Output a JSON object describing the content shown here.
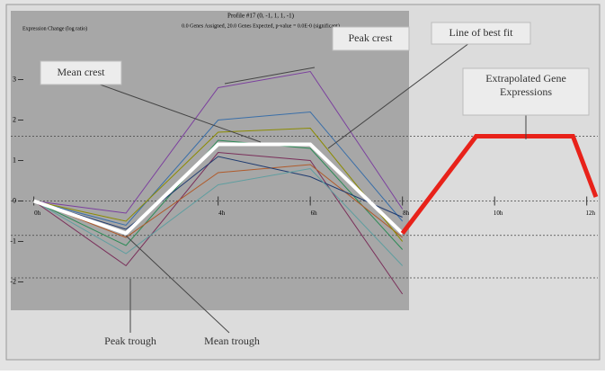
{
  "chart_data": {
    "type": "line",
    "title": "Profile #17 (0, -1, 1, 1, -1)",
    "subtitle": "0.0 Genes Assigned, 20.0 Genes Expected, p-value = 0.0E-0 (significant)",
    "y_label": "Expression Change (log ratio)",
    "xlim": [
      -0.25,
      6.12
    ],
    "ylim": [
      -2.7,
      4.7
    ],
    "xticks": [
      {
        "value": 0,
        "label": "0h"
      },
      {
        "value": 2,
        "label": "4h"
      },
      {
        "value": 3,
        "label": "6h"
      },
      {
        "value": 4,
        "label": "8h"
      },
      {
        "value": 5,
        "label": "10h"
      },
      {
        "value": 6,
        "label": "12h"
      }
    ],
    "yticks": [
      -2,
      -1,
      0,
      1,
      2,
      3
    ],
    "reference_lines": [
      1.6,
      0,
      -0.85,
      -1.9
    ],
    "series": [
      {
        "color": "#7b3f9e",
        "x": [
          0,
          1,
          2,
          3,
          4
        ],
        "values": [
          0,
          -0.3,
          2.8,
          3.2,
          -0.2
        ]
      },
      {
        "color": "#7a2f5a",
        "x": [
          0,
          1,
          2,
          3,
          4
        ],
        "values": [
          0,
          -1.6,
          1.2,
          1.0,
          -2.3
        ]
      },
      {
        "color": "#3a6fa8",
        "x": [
          0,
          1,
          2,
          3,
          4
        ],
        "values": [
          0,
          -0.6,
          2.0,
          2.2,
          -0.5
        ]
      },
      {
        "color": "#2e8b57",
        "x": [
          0,
          1,
          2,
          3,
          4
        ],
        "values": [
          0,
          -1.1,
          1.5,
          1.3,
          -1.2
        ]
      },
      {
        "color": "#b05a2a",
        "x": [
          0,
          1,
          2,
          3,
          4
        ],
        "values": [
          0,
          -0.9,
          0.7,
          0.9,
          -0.9
        ]
      },
      {
        "color": "#1f3b70",
        "x": [
          0,
          1,
          2,
          3,
          4
        ],
        "values": [
          0,
          -0.7,
          1.1,
          0.6,
          -0.4
        ]
      },
      {
        "color": "#5f9ea0",
        "x": [
          0,
          1,
          2,
          3,
          4
        ],
        "values": [
          0,
          -1.3,
          0.4,
          0.8,
          -1.6
        ]
      },
      {
        "color": "#8b8b00",
        "x": [
          0,
          1,
          2,
          3,
          4
        ],
        "values": [
          0,
          -0.5,
          1.7,
          1.8,
          -1.0
        ]
      },
      {
        "color": "#ffffff",
        "x": [
          0,
          1,
          2,
          3,
          4
        ],
        "values": [
          0,
          -0.8,
          1.4,
          1.4,
          -0.8
        ],
        "width": 4
      },
      {
        "color": "#e8221a",
        "x": [
          4,
          4.8,
          5.85,
          6.1
        ],
        "values": [
          -0.8,
          1.6,
          1.6,
          0.1
        ],
        "width": 5
      }
    ],
    "annotations": [
      "Peak crest",
      "Line of best fit",
      "Mean crest",
      "Extrapolated Gene Expressions",
      "Peak trough",
      "Mean trough"
    ]
  }
}
